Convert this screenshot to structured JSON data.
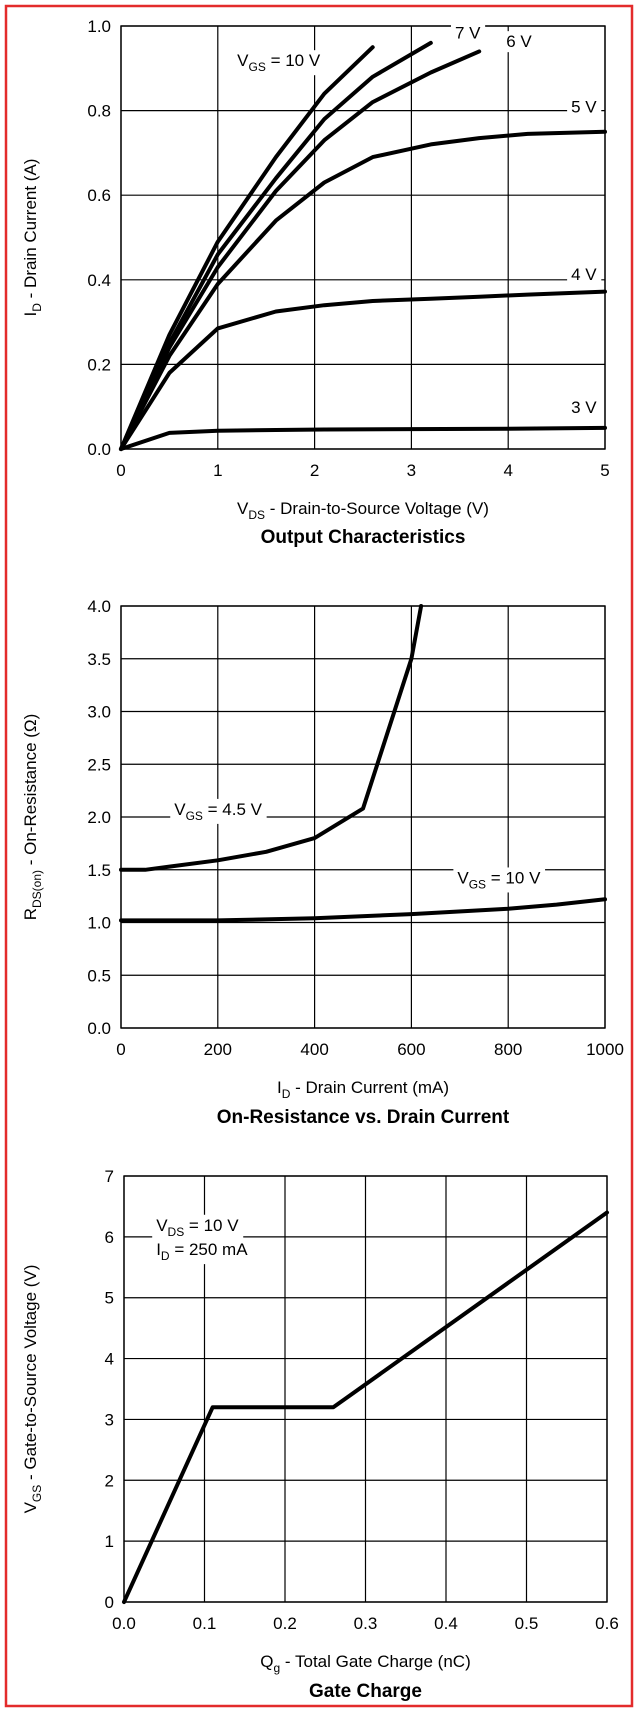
{
  "chart_data": [
    {
      "type": "line",
      "title": "Output Characteristics",
      "xlabel": {
        "main": "V",
        "sub": "DS",
        "rest": " - Drain-to-Source Voltage (V)"
      },
      "ylabel": {
        "main": "I",
        "sub": "D",
        "rest": " - Drain Current (A)"
      },
      "xlim": [
        0,
        5
      ],
      "ylim": [
        0,
        1.0
      ],
      "xticks": [
        0,
        1,
        2,
        3,
        4,
        5
      ],
      "xtick_labels": [
        "0",
        "1",
        "2",
        "3",
        "4",
        "5"
      ],
      "yticks": [
        0,
        0.2,
        0.4,
        0.6,
        0.8,
        1.0
      ],
      "ytick_labels": [
        "0.0",
        "0.2",
        "0.4",
        "0.6",
        "0.8",
        "1.0"
      ],
      "grid": true,
      "series": [
        {
          "name": "10 V",
          "x": [
            0,
            0.5,
            1.0,
            1.6,
            2.1,
            2.6
          ],
          "y": [
            0,
            0.27,
            0.49,
            0.69,
            0.84,
            0.95
          ]
        },
        {
          "name": "7 V",
          "x": [
            0,
            0.5,
            1.0,
            1.6,
            2.1,
            2.6,
            3.2
          ],
          "y": [
            0,
            0.25,
            0.46,
            0.64,
            0.78,
            0.88,
            0.96
          ]
        },
        {
          "name": "6 V",
          "x": [
            0,
            0.5,
            1.0,
            1.6,
            2.1,
            2.6,
            3.2,
            3.7
          ],
          "y": [
            0,
            0.24,
            0.43,
            0.61,
            0.73,
            0.82,
            0.89,
            0.94
          ]
        },
        {
          "name": "5 V",
          "x": [
            0,
            0.5,
            1.0,
            1.6,
            2.1,
            2.6,
            3.2,
            3.7,
            4.2,
            5.0
          ],
          "y": [
            0,
            0.22,
            0.39,
            0.54,
            0.63,
            0.69,
            0.72,
            0.735,
            0.745,
            0.75
          ]
        },
        {
          "name": "4 V",
          "x": [
            0,
            0.5,
            1.0,
            1.6,
            2.1,
            2.6,
            3.2,
            3.7,
            4.2,
            5.0
          ],
          "y": [
            0,
            0.18,
            0.285,
            0.325,
            0.34,
            0.35,
            0.355,
            0.36,
            0.365,
            0.372
          ]
        },
        {
          "name": "3 V",
          "x": [
            0,
            0.5,
            1.0,
            1.6,
            2.1,
            3.0,
            4.0,
            5.0
          ],
          "y": [
            0,
            0.038,
            0.043,
            0.045,
            0.046,
            0.047,
            0.048,
            0.05
          ]
        }
      ],
      "annotations": [
        {
          "main": "V",
          "sub": "GS",
          "rest": " = 10 V",
          "x": 1.2,
          "y": 0.905
        },
        {
          "main": "7 V",
          "sub": "",
          "rest": "",
          "x": 3.45,
          "y": 0.97
        },
        {
          "main": "6 V",
          "sub": "",
          "rest": "",
          "x": 3.98,
          "y": 0.95
        },
        {
          "main": "5 V",
          "sub": "",
          "rest": "",
          "x": 4.65,
          "y": 0.795
        },
        {
          "main": "4 V",
          "sub": "",
          "rest": "",
          "x": 4.65,
          "y": 0.4
        },
        {
          "main": "3 V",
          "sub": "",
          "rest": "",
          "x": 4.65,
          "y": 0.085
        }
      ]
    },
    {
      "type": "line",
      "title": "On-Resistance vs. Drain Current",
      "xlabel": {
        "main": "I",
        "sub": "D",
        "rest": " - Drain Current (mA)"
      },
      "ylabel": {
        "main": "R",
        "sub": "DS(on)",
        "rest": " - On-Resistance (Ω)"
      },
      "xlim": [
        0,
        1000
      ],
      "ylim": [
        0,
        4.0
      ],
      "xticks": [
        0,
        200,
        400,
        600,
        800,
        1000
      ],
      "xtick_labels": [
        "0",
        "200",
        "400",
        "600",
        "800",
        "1000"
      ],
      "yticks": [
        0,
        0.5,
        1.0,
        1.5,
        2.0,
        2.5,
        3.0,
        3.5,
        4.0
      ],
      "ytick_labels": [
        "0.0",
        "0.5",
        "1.0",
        "1.5",
        "2.0",
        "2.5",
        "3.0",
        "3.5",
        "4.0"
      ],
      "grid": true,
      "series": [
        {
          "name": "4.5 V",
          "x": [
            0,
            50,
            100,
            200,
            300,
            400,
            500,
            600,
            620
          ],
          "y": [
            1.5,
            1.5,
            1.53,
            1.59,
            1.67,
            1.8,
            2.08,
            3.5,
            4.0
          ]
        },
        {
          "name": "10 V",
          "x": [
            0,
            200,
            400,
            600,
            800,
            900,
            1000
          ],
          "y": [
            1.02,
            1.02,
            1.04,
            1.08,
            1.13,
            1.17,
            1.22
          ]
        }
      ],
      "annotations": [
        {
          "main": "V",
          "sub": "GS",
          "rest": " = 4.5 V",
          "x": 110,
          "y": 2.02
        },
        {
          "main": "V",
          "sub": "GS",
          "rest": " = 10 V",
          "x": 695,
          "y": 1.37
        }
      ]
    },
    {
      "type": "line",
      "title": "Gate Charge",
      "xlabel": {
        "main": "Q",
        "sub": "g",
        "rest": " - Total Gate Charge (nC)"
      },
      "ylabel": {
        "main": "V",
        "sub": "GS",
        "rest": " - Gate-to-Source Voltage (V)"
      },
      "xlim": [
        0,
        0.6
      ],
      "ylim": [
        0,
        7
      ],
      "xticks": [
        0,
        0.1,
        0.2,
        0.3,
        0.4,
        0.5,
        0.6
      ],
      "xtick_labels": [
        "0.0",
        "0.1",
        "0.2",
        "0.3",
        "0.4",
        "0.5",
        "0.6"
      ],
      "yticks": [
        0,
        1,
        2,
        3,
        4,
        5,
        6,
        7
      ],
      "ytick_labels": [
        "0",
        "1",
        "2",
        "3",
        "4",
        "5",
        "6",
        "7"
      ],
      "grid": true,
      "series": [
        {
          "name": "",
          "x": [
            0,
            0.11,
            0.26,
            0.6
          ],
          "y": [
            0,
            3.2,
            3.2,
            6.4
          ]
        }
      ],
      "annotations": [
        {
          "main": "V",
          "sub": "DS",
          "rest": " = 10 V",
          "x": 0.04,
          "y": 6.1
        },
        {
          "main": "I",
          "sub": "D",
          "rest": " = 250 mA",
          "x": 0.04,
          "y": 5.7
        }
      ]
    }
  ]
}
